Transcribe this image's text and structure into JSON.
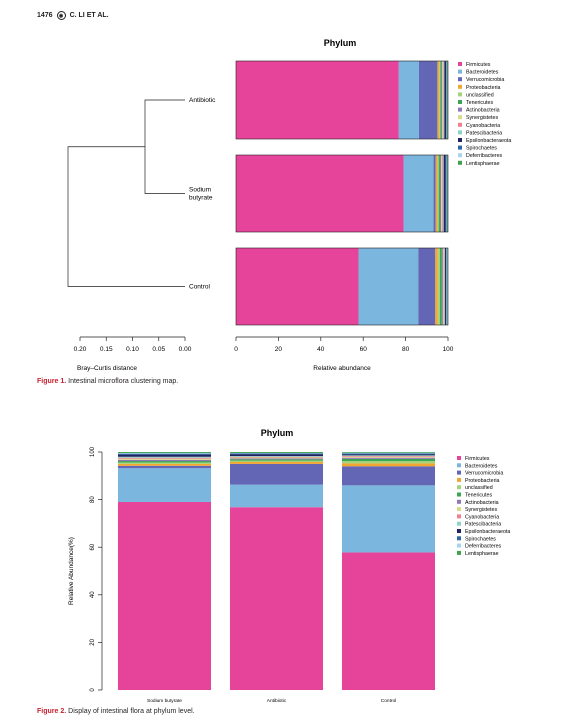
{
  "header": {
    "page_number": "1476",
    "logo_icon": "publisher-logo-icon",
    "authors": "C. LI ET AL."
  },
  "legend": {
    "names": [
      "Firmicutes",
      "Bacteroidetes",
      "Verrucomicrobia",
      "Proteobacteria",
      "unclassified",
      "Tenericutes",
      "Actinobacteria",
      "Synergistetes",
      "Cyanobacteria",
      "Patescibacteria",
      "Epsilonbacteraeota",
      "Spirochaetes",
      "Deferribacteres",
      "Lentisphaerae"
    ],
    "colors": [
      "#e6449a",
      "#7ab6de",
      "#6366b4",
      "#f2a632",
      "#a5d37a",
      "#3aa552",
      "#8f77b7",
      "#d9d98a",
      "#f07f90",
      "#8dd3c7",
      "#1f2460",
      "#2e66a5",
      "#a6d5ef",
      "#3fa34d"
    ]
  },
  "figure1": {
    "title": "Phylum",
    "caption_label": "Figure 1.",
    "caption_text": "Intestinal microflora clustering map.",
    "chart_data": {
      "type": "bar",
      "orientation": "horizontal",
      "title": "Phylum",
      "categories": [
        "Antibiotic",
        "Sodium butyrate",
        "Control"
      ],
      "category_lines": [
        [
          "Antibiotic"
        ],
        [
          "Sodium",
          "butyrate"
        ],
        [
          "Control"
        ]
      ],
      "xlabel": "Relative abundance",
      "xlim": [
        0,
        100
      ],
      "xticks": [
        "0",
        "20",
        "40",
        "60",
        "80",
        "100"
      ],
      "dendrogram": {
        "xlabel": "Bray–Curtis distance",
        "ticks": [
          "0.20",
          "0.15",
          "0.10",
          "0.05",
          "0.00"
        ],
        "xlim": [
          0.2,
          0.0
        ]
      },
      "series": [
        {
          "values": [
            76.8,
            79.0,
            57.8
          ]
        },
        {
          "values": [
            9.5,
            14.2,
            28.2
          ]
        },
        {
          "values": [
            8.7,
            1.0,
            8.0
          ]
        },
        {
          "values": [
            0.8,
            0.8,
            1.2
          ]
        },
        {
          "values": [
            0.6,
            0.6,
            1.0
          ]
        },
        {
          "values": [
            0.5,
            0.6,
            0.9
          ]
        },
        {
          "values": [
            0.4,
            0.5,
            0.5
          ]
        },
        {
          "values": [
            0.4,
            0.5,
            0.4
          ]
        },
        {
          "values": [
            0.3,
            0.4,
            0.3
          ]
        },
        {
          "values": [
            0.3,
            0.4,
            0.3
          ]
        },
        {
          "values": [
            0.8,
            0.9,
            0.5
          ]
        },
        {
          "values": [
            0.3,
            0.4,
            0.3
          ]
        },
        {
          "values": [
            0.2,
            0.3,
            0.3
          ]
        },
        {
          "values": [
            0.4,
            0.4,
            0.3
          ]
        }
      ]
    }
  },
  "figure2": {
    "title": "Phylum",
    "caption_label": "Figure 2.",
    "caption_text": "Display of intestinal flora at phylum level.",
    "chart_data": {
      "type": "bar",
      "orientation": "vertical",
      "stacked": true,
      "title": "Phylum",
      "categories": [
        "Sodium butyrate",
        "Antibiotic",
        "Control"
      ],
      "ylabel": "Relative Abundance(%)",
      "ylim": [
        0,
        100
      ],
      "yticks": [
        "0",
        "20",
        "40",
        "60",
        "80",
        "100"
      ],
      "series": [
        {
          "values": [
            79.0,
            76.8,
            57.8
          ]
        },
        {
          "values": [
            14.2,
            9.5,
            28.2
          ]
        },
        {
          "values": [
            1.0,
            8.7,
            8.0
          ]
        },
        {
          "values": [
            0.8,
            0.8,
            1.2
          ]
        },
        {
          "values": [
            0.6,
            0.6,
            1.0
          ]
        },
        {
          "values": [
            0.6,
            0.5,
            0.9
          ]
        },
        {
          "values": [
            0.5,
            0.4,
            0.5
          ]
        },
        {
          "values": [
            0.5,
            0.4,
            0.4
          ]
        },
        {
          "values": [
            0.4,
            0.3,
            0.3
          ]
        },
        {
          "values": [
            0.4,
            0.3,
            0.3
          ]
        },
        {
          "values": [
            0.9,
            0.8,
            0.5
          ]
        },
        {
          "values": [
            0.4,
            0.3,
            0.3
          ]
        },
        {
          "values": [
            0.3,
            0.2,
            0.3
          ]
        },
        {
          "values": [
            0.4,
            0.4,
            0.3
          ]
        }
      ]
    }
  }
}
